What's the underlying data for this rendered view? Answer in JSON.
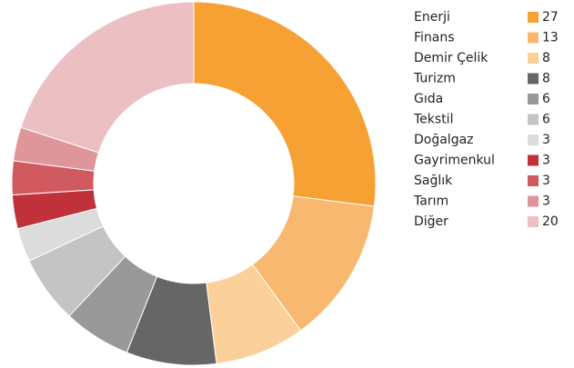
{
  "chart_data": {
    "type": "pie",
    "categories": [
      "Enerji",
      "Finans",
      "Demir Çelik",
      "Turizm",
      "Gıda",
      "Tekstil",
      "Doğalgaz",
      "Gayrimenkul",
      "Sağlık",
      "Tarım",
      "Diğer"
    ],
    "values": [
      27,
      13,
      8,
      8,
      6,
      6,
      3,
      3,
      3,
      3,
      20
    ],
    "colors": [
      "#f7a033",
      "#f9b870",
      "#fbd09a",
      "#666666",
      "#999999",
      "#c4c4c4",
      "#dcdcdc",
      "#c1313a",
      "#d15a60",
      "#de969b",
      "#ecc0c3"
    ],
    "legend": "right"
  }
}
